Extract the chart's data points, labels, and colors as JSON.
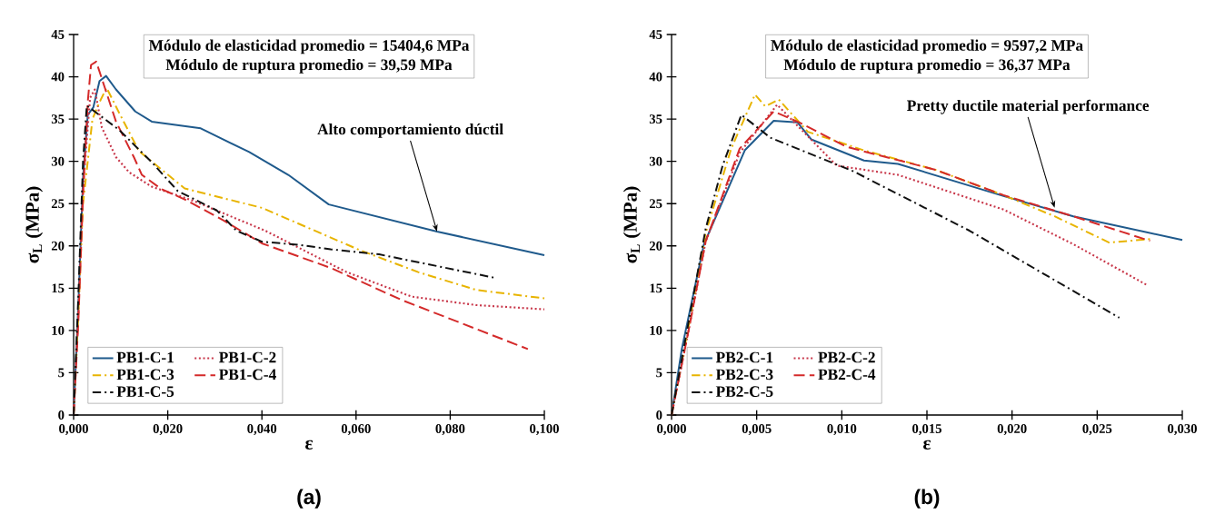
{
  "chart_data": [
    {
      "type": "line",
      "title": "Módulo de elasticidad promedio = 15404,6 MPa",
      "subtitle": "Módulo de ruptura promedio =  39,59 MPa",
      "xlabel": "ε",
      "ylabel": "σ$_{L}$ (MPa)",
      "xlim": [
        0,
        0.1
      ],
      "ylim": [
        0,
        45
      ],
      "xticks": [
        {
          "value": 0,
          "label": "0,000"
        },
        {
          "value": 0.02,
          "label": "0,020"
        },
        {
          "value": 0.04,
          "label": "0,040"
        },
        {
          "value": 0.06,
          "label": "0,060"
        },
        {
          "value": 0.08,
          "label": "0,080"
        },
        {
          "value": 0.1,
          "label": "0,100"
        }
      ],
      "yticks": [
        0,
        5,
        10,
        15,
        20,
        25,
        30,
        35,
        40,
        45
      ],
      "grid": false,
      "legend": "bottom left",
      "marker": "none",
      "annotations": [
        {
          "text": "Alto comportamiento dúctil",
          "x": 0.0772,
          "y": 21.7
        },
        "(a)"
      ],
      "series": [
        {
          "name": "PB1-C-1",
          "color": "#1f5a8c",
          "line_style": "solid",
          "x": [
            0,
            0.001,
            0.002,
            0.003,
            0.0042,
            0.0055,
            0.0069,
            0.009,
            0.0131,
            0.0166,
            0.027,
            0.0373,
            0.0456,
            0.0542,
            0.0772,
            0.1
          ],
          "values": [
            0,
            13,
            28,
            35.5,
            36.4,
            39.5,
            40.1,
            38.5,
            35.9,
            34.7,
            33.9,
            31.1,
            28.4,
            24.9,
            21.7,
            18.9
          ]
        },
        {
          "name": "PB1-C-2",
          "color": "#c8374a",
          "line_style": "dotted",
          "x": [
            0,
            0.001,
            0.002,
            0.0035,
            0.0045,
            0.006,
            0.009,
            0.0118,
            0.0166,
            0.0256,
            0.0407,
            0.058,
            0.0718,
            0.0855,
            0.1
          ],
          "values": [
            0,
            12,
            27,
            37.5,
            38.5,
            34,
            30.5,
            28.7,
            27,
            25.3,
            21.8,
            16.9,
            14,
            13,
            12.5
          ]
        },
        {
          "name": "PB1-C-3",
          "color": "#e8b400",
          "line_style": "dashdot",
          "x": [
            0,
            0.001,
            0.002,
            0.004,
            0.0055,
            0.007,
            0.0097,
            0.0139,
            0.0236,
            0.04,
            0.0608,
            0.0732,
            0.0855,
            0.1
          ],
          "values": [
            0,
            12,
            25,
            35,
            37,
            38.7,
            35.7,
            31.2,
            26.8,
            24.5,
            19.5,
            16.9,
            14.8,
            13.8
          ]
        },
        {
          "name": "PB1-C-4",
          "color": "#d42a2a",
          "line_style": "dashed",
          "x": [
            0,
            0.001,
            0.002,
            0.003,
            0.0037,
            0.0048,
            0.009,
            0.0128,
            0.0145,
            0.0187,
            0.0236,
            0.0319,
            0.04,
            0.0546,
            0.0697,
            0.0965
          ],
          "values": [
            0,
            11,
            26,
            37,
            41.4,
            41.8,
            34.7,
            30.5,
            28.4,
            26.7,
            25.5,
            23,
            20.3,
            17.4,
            13.6,
            7.8
          ]
        },
        {
          "name": "PB1-C-5",
          "color": "#111111",
          "line_style": "dashdot",
          "x": [
            0,
            0.001,
            0.002,
            0.0028,
            0.0097,
            0.0166,
            0.0221,
            0.0304,
            0.0346,
            0.04,
            0.0483,
            0.0546,
            0.0649,
            0.0897
          ],
          "values": [
            0,
            14,
            30,
            36.6,
            33.7,
            29.9,
            26.5,
            24.2,
            21.8,
            20.5,
            20.1,
            19.6,
            19,
            16.2
          ]
        }
      ]
    },
    {
      "type": "line",
      "title": "Módulo de elasticidad promedio = 9597,2 MPa",
      "subtitle": "Módulo de ruptura promedio =  36,37 MPa",
      "xlabel": "ε",
      "ylabel": "σ$_{L}$ (MPa)",
      "xlim": [
        0,
        0.03
      ],
      "ylim": [
        0,
        45
      ],
      "xticks": [
        {
          "value": 0,
          "label": "0,000"
        },
        {
          "value": 0.005,
          "label": "0,005"
        },
        {
          "value": 0.01,
          "label": "0,010"
        },
        {
          "value": 0.015,
          "label": "0,015"
        },
        {
          "value": 0.02,
          "label": "0,020"
        },
        {
          "value": 0.025,
          "label": "0,025"
        },
        {
          "value": 0.03,
          "label": "0,030"
        }
      ],
      "yticks": [
        0,
        5,
        10,
        15,
        20,
        25,
        30,
        35,
        40,
        45
      ],
      "grid": false,
      "legend": "bottom left",
      "marker": "none",
      "annotations": [
        {
          "text": "Pretty ductile material performance",
          "x": 0.0225,
          "y": 24.5
        },
        "(b)"
      ],
      "series": [
        {
          "name": "PB2-C-1",
          "color": "#1f5a8c",
          "line_style": "solid",
          "x": [
            0,
            0.0006,
            0.0019,
            0.0043,
            0.006,
            0.0074,
            0.0082,
            0.0113,
            0.0133,
            0.0195,
            0.0236,
            0.03
          ],
          "values": [
            0,
            7.8,
            20.2,
            31.3,
            34.8,
            34.6,
            32.6,
            30.1,
            29.7,
            25.9,
            23.5,
            20.7
          ]
        },
        {
          "name": "PB2-C-2",
          "color": "#c8374a",
          "line_style": "dotted",
          "x": [
            0,
            0.001,
            0.002,
            0.004,
            0.0062,
            0.0075,
            0.0097,
            0.0133,
            0.0195,
            0.0236,
            0.0279
          ],
          "values": [
            0,
            10,
            20.5,
            31,
            36.7,
            34,
            29.5,
            28.4,
            24.3,
            20.2,
            15.4
          ]
        },
        {
          "name": "PB2-C-3",
          "color": "#e8b400",
          "line_style": "dashdot",
          "x": [
            0,
            0.001,
            0.002,
            0.0035,
            0.0049,
            0.0055,
            0.0063,
            0.008,
            0.0113,
            0.0155,
            0.0195,
            0.0225,
            0.0257,
            0.0281
          ],
          "values": [
            0,
            10.5,
            21.5,
            31.5,
            37.9,
            36.5,
            37.3,
            33.5,
            31.3,
            29,
            26,
            23.5,
            20.4,
            20.8
          ]
        },
        {
          "name": "PB2-C-4",
          "color": "#d42a2a",
          "line_style": "dashed",
          "x": [
            0,
            0.001,
            0.002,
            0.004,
            0.006,
            0.0075,
            0.0103,
            0.0155,
            0.0195,
            0.0236,
            0.0281
          ],
          "values": [
            0,
            10,
            20.5,
            31.5,
            35.9,
            34.6,
            31.7,
            29,
            26,
            23.5,
            20.6
          ]
        },
        {
          "name": "PB2-C-5",
          "color": "#111111",
          "line_style": "dashdot",
          "x": [
            0,
            0.001,
            0.002,
            0.003,
            0.0041,
            0.0058,
            0.0107,
            0.0175,
            0.0263
          ],
          "values": [
            0,
            11,
            22,
            29.5,
            35.5,
            32.8,
            28.8,
            21.8,
            11.5
          ]
        }
      ]
    }
  ]
}
